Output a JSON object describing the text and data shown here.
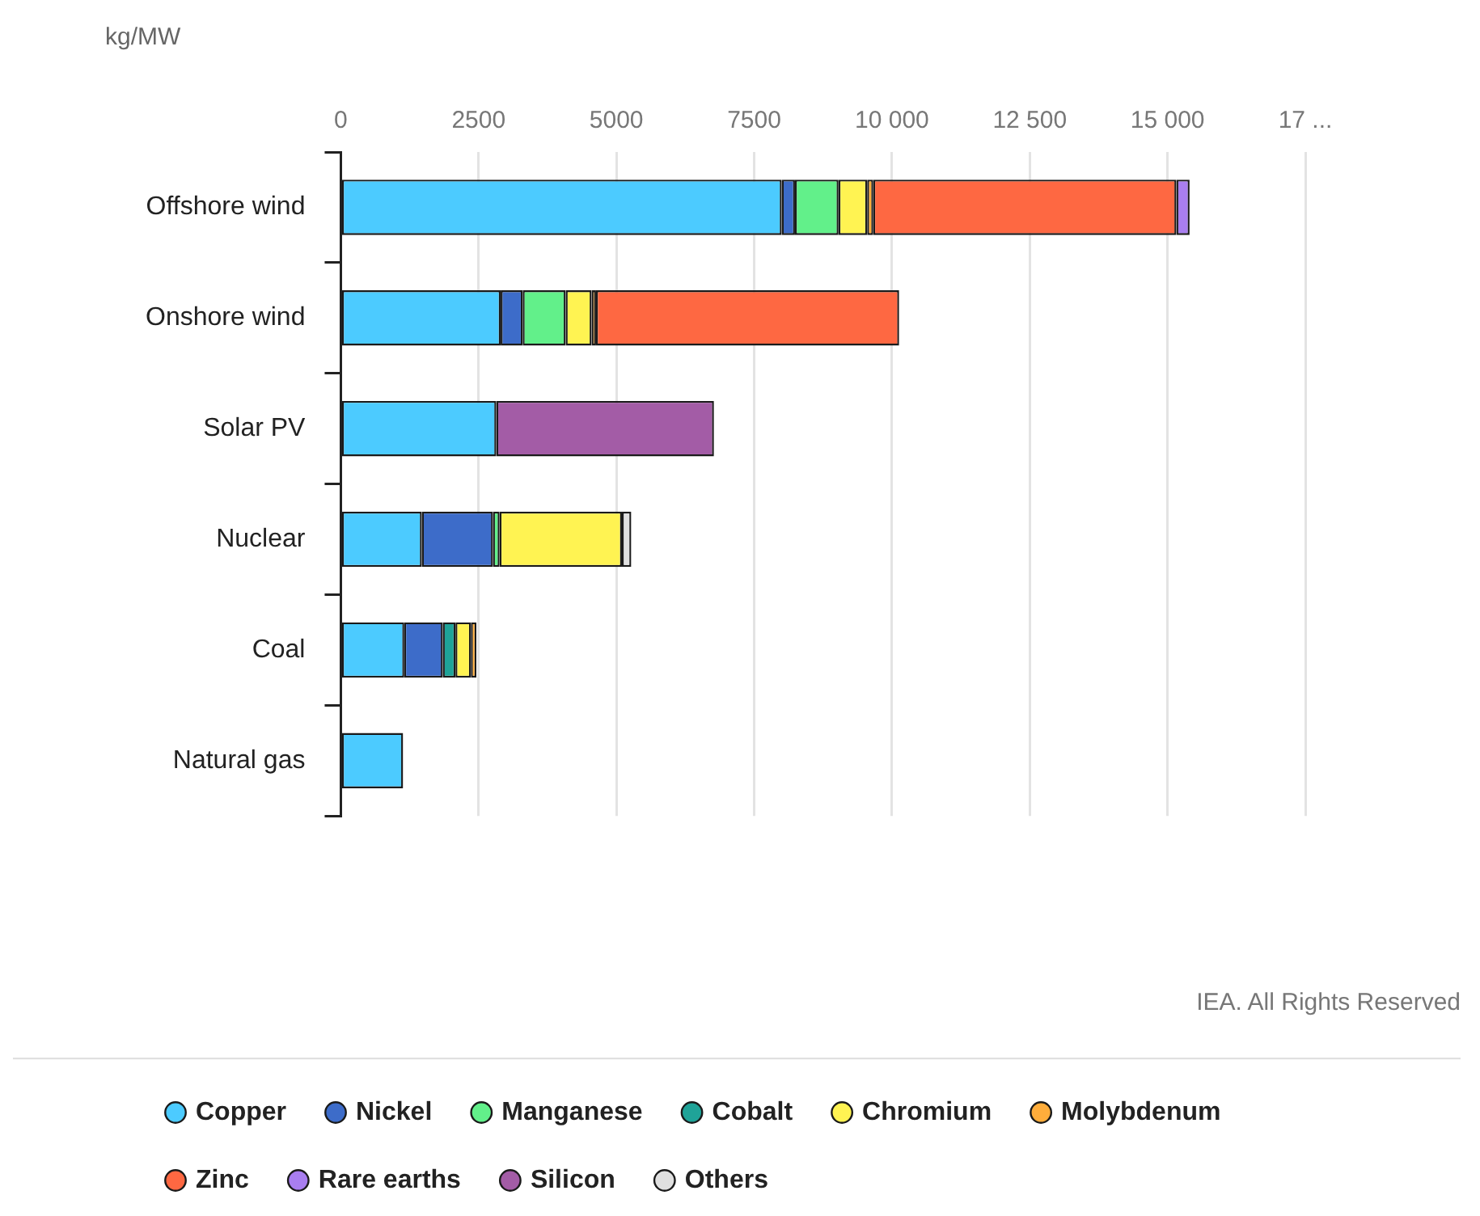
{
  "chart_data": {
    "type": "bar",
    "orientation": "horizontal",
    "stacked": true,
    "xlabel": "kg/MW",
    "categories": [
      "Offshore wind",
      "Onshore wind",
      "Solar PV",
      "Nuclear",
      "Coal",
      "Natural gas"
    ],
    "series": [
      {
        "name": "Copper",
        "color": "#4ccbff",
        "values": [
          8000,
          2900,
          2820,
          1470,
          1150,
          1130
        ]
      },
      {
        "name": "Nickel",
        "color": "#3d6cc9",
        "values": [
          240,
          400,
          null,
          1290,
          700,
          null
        ]
      },
      {
        "name": "Manganese",
        "color": "#62f08a",
        "values": [
          790,
          780,
          null,
          120,
          null,
          null
        ]
      },
      {
        "name": "Cobalt",
        "color": "#1fa398",
        "values": [
          null,
          null,
          null,
          null,
          230,
          null
        ]
      },
      {
        "name": "Chromium",
        "color": "#fff352",
        "values": [
          520,
          470,
          null,
          2220,
          280,
          null
        ]
      },
      {
        "name": "Molybdenum",
        "color": "#ffad3b",
        "values": [
          110,
          80,
          null,
          null,
          100,
          null
        ]
      },
      {
        "name": "Zinc",
        "color": "#fe6842",
        "values": [
          5500,
          5500,
          null,
          null,
          null,
          null
        ]
      },
      {
        "name": "Rare earths",
        "color": "#a97ef0",
        "values": [
          240,
          null,
          null,
          null,
          null,
          null
        ]
      },
      {
        "name": "Silicon",
        "color": "#a35ca6",
        "values": [
          null,
          null,
          3950,
          null,
          null,
          null
        ]
      },
      {
        "name": "Others",
        "color": "#e0e0e0",
        "values": [
          null,
          null,
          null,
          170,
          null,
          null
        ]
      }
    ],
    "xlim": [
      0,
      17500
    ],
    "xticks": [
      0,
      2500,
      5000,
      7500,
      {
        "value": 10000,
        "label": "10 000"
      },
      {
        "value": 12500,
        "label": "12 500"
      },
      {
        "value": 15000,
        "label": "15 000"
      },
      {
        "value": 17500,
        "label": "17 ..."
      }
    ],
    "grid": "x",
    "legend": "bottom",
    "annotations": [
      "IEA. All Rights Reserved"
    ]
  }
}
